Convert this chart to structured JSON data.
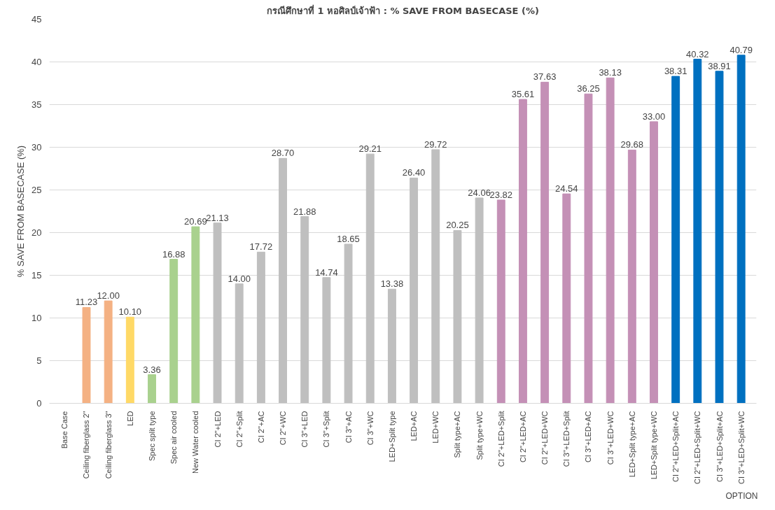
{
  "chart_data": {
    "type": "bar",
    "title": "กรณีศึกษาที่ 1 หอศิลป์เจ้าฟ้า : % SAVE FROM BASECASE (%)",
    "ylabel": "% SAVE FROM BASECASE (%)",
    "categories": [
      "Base Case",
      "Ceiling fiberglass 2\"",
      "Ceiling fiberglass 3\"",
      "LED",
      "Spec split type",
      "Spec air cooled",
      "New Water cooled",
      "CI 2\"+LED",
      "CI 2\"+Split",
      "CI 2\"+AC",
      "CI 2\"+WC",
      "CI 3\"+LED",
      "CI 3\"+Split",
      "CI 3\"+AC",
      "CI 3\"+WC",
      "LED+Split type",
      "LED+AC",
      "LED+WC",
      "Split type+AC",
      "Split type+WC",
      "CI 2\"+LED+Split",
      "CI 2\"+LED+AC",
      "CI 2\"+LED+WC",
      "CI 3\"+LED+Split",
      "CI 3\"+LED+AC",
      "CI 3\"+LED+WC",
      "LED+Split type+AC",
      "LED+Split type+WC",
      "CI 2\"+LED+Split+AC",
      "CI 2\"+LED+Split+WC",
      "CI 3\"+LED+Split+AC",
      "CI 3\"+LED+Split+WC"
    ],
    "values": [
      null,
      11.23,
      12.0,
      10.1,
      3.36,
      16.88,
      20.69,
      21.13,
      14.0,
      17.72,
      28.7,
      21.88,
      14.74,
      18.65,
      29.21,
      13.38,
      26.4,
      29.72,
      20.25,
      24.06,
      23.82,
      35.61,
      37.63,
      24.54,
      36.25,
      38.13,
      29.68,
      33.0,
      38.31,
      40.32,
      38.91,
      40.79
    ],
    "value_labels": [
      null,
      "11.23",
      "12.00",
      "10.10",
      "3.36",
      "16.88",
      "20.69",
      "21.13",
      "14.00",
      "17.72",
      "28.70",
      "21.88",
      "14.74",
      "18.65",
      "29.21",
      "13.38",
      "26.40",
      "29.72",
      "20.25",
      "24.06",
      "23.82",
      "35.61",
      "37.63",
      "24.54",
      "36.25",
      "38.13",
      "29.68",
      "33.00",
      "38.31",
      "40.32",
      "38.91",
      "40.79"
    ],
    "colors": [
      "#bfbfbf",
      "#f4b183",
      "#f4b183",
      "#ffd966",
      "#a9d18e",
      "#a9d18e",
      "#a9d18e",
      "#bfbfbf",
      "#bfbfbf",
      "#bfbfbf",
      "#bfbfbf",
      "#bfbfbf",
      "#bfbfbf",
      "#bfbfbf",
      "#bfbfbf",
      "#bfbfbf",
      "#bfbfbf",
      "#bfbfbf",
      "#bfbfbf",
      "#bfbfbf",
      "#c490b6",
      "#c490b6",
      "#c490b6",
      "#c490b6",
      "#c490b6",
      "#c490b6",
      "#c490b6",
      "#c490b6",
      "#0070c0",
      "#0070c0",
      "#0070c0",
      "#0070c0"
    ],
    "ylim": [
      0,
      45
    ],
    "yticks": [
      0,
      5,
      10,
      15,
      20,
      25,
      30,
      35,
      40,
      45
    ],
    "grid": "y",
    "annotations": [
      "OPTION"
    ]
  }
}
